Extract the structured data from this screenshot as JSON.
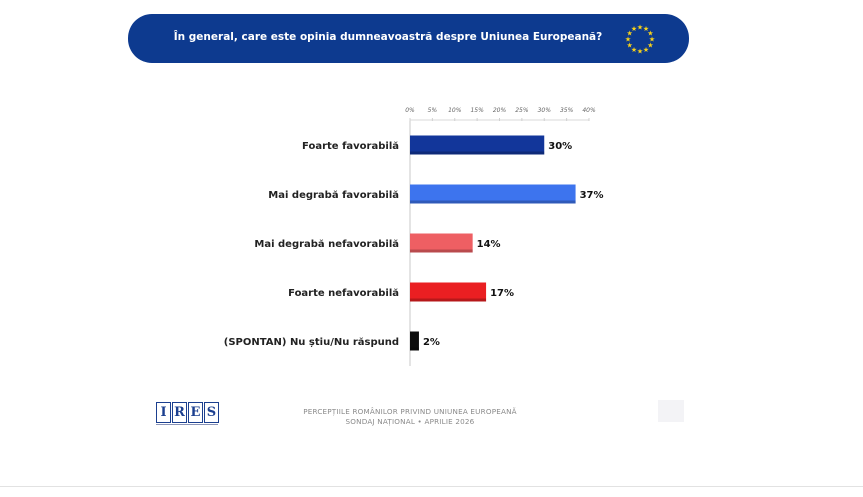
{
  "header": {
    "question": "În general, care este opinia dumneavoastră despre Uniunea Europeană?",
    "flag_icon": "eu-flag-icon"
  },
  "chart_data": {
    "type": "bar",
    "orientation": "horizontal",
    "categories": [
      "Foarte favorabilă",
      "Mai degrabă favorabilă",
      "Mai degrabă nefavorabilă",
      "Foarte nefavorabilă",
      "(SPONTAN) Nu știu/Nu răspund"
    ],
    "values": [
      30,
      37,
      14,
      17,
      2
    ],
    "value_labels": [
      "30%",
      "37%",
      "14%",
      "17%",
      "2%"
    ],
    "bar_colors": [
      "#12369a",
      "#3d74ee",
      "#ee5f63",
      "#ea1f22",
      "#0c0c0c"
    ],
    "xlim": [
      0,
      40
    ],
    "x_ticks": [
      "0%",
      "5%",
      "10%",
      "15%",
      "20%",
      "25%",
      "30%",
      "35%",
      "40%"
    ],
    "grid": false,
    "legend": "none"
  },
  "footer": {
    "logo_letters": [
      "I",
      "R",
      "E",
      "S"
    ],
    "line1": "PERCEPȚIILE ROMÂNILOR PRIVIND UNIUNEA EUROPEANĂ",
    "line2": "SONDAJ NAȚIONAL • APRILIE 2026"
  }
}
